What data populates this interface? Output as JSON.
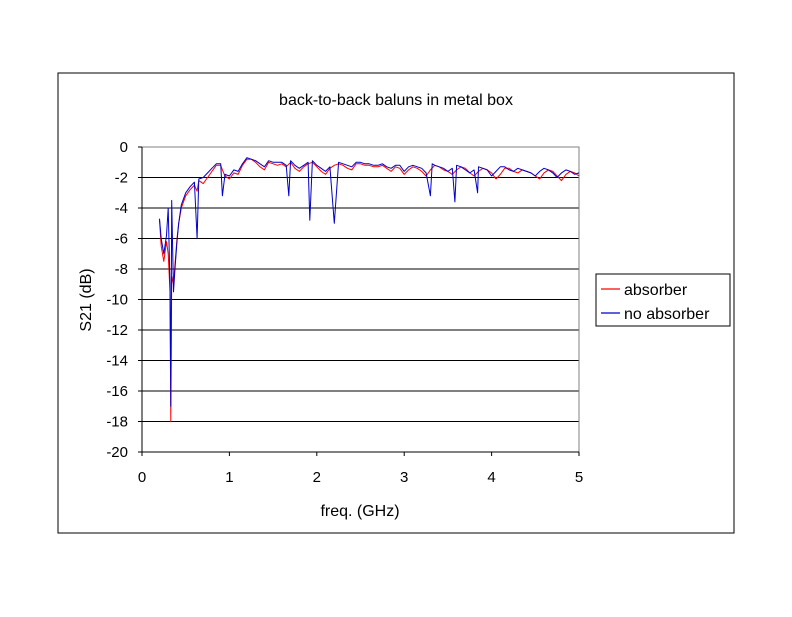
{
  "chart_data": {
    "type": "line",
    "title": "back-to-back baluns in metal box",
    "xlabel": "freq. (GHz)",
    "ylabel": "S21 (dB)",
    "xlim": [
      0,
      5
    ],
    "ylim": [
      -20,
      0
    ],
    "xticks": [
      0,
      1,
      2,
      3,
      4,
      5
    ],
    "yticks": [
      0,
      -2,
      -4,
      -6,
      -8,
      -10,
      -12,
      -14,
      -16,
      -18,
      -20
    ],
    "grid": "horizontal",
    "legend_position": "right",
    "series": [
      {
        "name": "absorber",
        "color": "#ff0000",
        "x": [
          0.2,
          0.22,
          0.25,
          0.28,
          0.3,
          0.32,
          0.33,
          0.34,
          0.36,
          0.38,
          0.4,
          0.42,
          0.45,
          0.5,
          0.55,
          0.6,
          0.63,
          0.65,
          0.7,
          0.75,
          0.8,
          0.85,
          0.9,
          0.92,
          0.95,
          1.0,
          1.05,
          1.1,
          1.15,
          1.2,
          1.25,
          1.3,
          1.35,
          1.4,
          1.45,
          1.5,
          1.55,
          1.6,
          1.65,
          1.7,
          1.75,
          1.8,
          1.85,
          1.9,
          1.95,
          2.0,
          2.05,
          2.1,
          2.15,
          2.2,
          2.25,
          2.3,
          2.35,
          2.4,
          2.45,
          2.5,
          2.55,
          2.6,
          2.65,
          2.7,
          2.75,
          2.8,
          2.85,
          2.9,
          2.95,
          3.0,
          3.05,
          3.1,
          3.15,
          3.2,
          3.25,
          3.3,
          3.35,
          3.4,
          3.45,
          3.5,
          3.55,
          3.6,
          3.65,
          3.7,
          3.75,
          3.8,
          3.85,
          3.9,
          3.95,
          4.0,
          4.05,
          4.1,
          4.15,
          4.2,
          4.25,
          4.3,
          4.35,
          4.4,
          4.45,
          4.5,
          4.55,
          4.6,
          4.65,
          4.7,
          4.75,
          4.8,
          4.85,
          4.9,
          4.95,
          5.0
        ],
        "values": [
          -4.8,
          -6.5,
          -7.5,
          -6.2,
          -7.0,
          -9.5,
          -18.0,
          -8.5,
          -9.0,
          -7.5,
          -6.0,
          -5.0,
          -4.0,
          -3.2,
          -2.8,
          -2.5,
          -2.9,
          -2.2,
          -2.4,
          -2.0,
          -1.6,
          -1.2,
          -1.2,
          -1.5,
          -1.9,
          -2.1,
          -1.7,
          -1.8,
          -1.2,
          -0.8,
          -0.8,
          -1.0,
          -1.3,
          -1.5,
          -1.0,
          -1.1,
          -1.2,
          -1.1,
          -1.3,
          -1.0,
          -1.4,
          -1.6,
          -1.3,
          -1.1,
          -1.0,
          -1.3,
          -1.6,
          -1.8,
          -1.4,
          -1.2,
          -1.1,
          -1.2,
          -1.4,
          -1.5,
          -1.1,
          -1.1,
          -1.2,
          -1.2,
          -1.3,
          -1.3,
          -1.2,
          -1.4,
          -1.6,
          -1.3,
          -1.4,
          -1.8,
          -1.5,
          -1.3,
          -1.4,
          -1.6,
          -1.9,
          -1.5,
          -1.2,
          -1.3,
          -1.5,
          -1.6,
          -1.8,
          -1.5,
          -1.3,
          -1.4,
          -1.7,
          -1.9,
          -1.6,
          -1.4,
          -1.5,
          -1.7,
          -2.1,
          -1.8,
          -1.4,
          -1.4,
          -1.6,
          -1.7,
          -1.5,
          -1.6,
          -1.7,
          -1.9,
          -2.1,
          -1.7,
          -1.5,
          -1.6,
          -1.9,
          -2.2,
          -1.8,
          -1.6,
          -1.7,
          -1.9
        ]
      },
      {
        "name": "no absorber",
        "color": "#0000cc",
        "x": [
          0.2,
          0.22,
          0.25,
          0.28,
          0.3,
          0.32,
          0.33,
          0.34,
          0.36,
          0.38,
          0.4,
          0.42,
          0.45,
          0.5,
          0.55,
          0.6,
          0.63,
          0.65,
          0.7,
          0.75,
          0.8,
          0.85,
          0.9,
          0.92,
          0.95,
          1.0,
          1.05,
          1.1,
          1.15,
          1.2,
          1.25,
          1.3,
          1.35,
          1.4,
          1.45,
          1.5,
          1.55,
          1.6,
          1.65,
          1.68,
          1.7,
          1.75,
          1.8,
          1.85,
          1.9,
          1.92,
          1.95,
          2.0,
          2.05,
          2.1,
          2.15,
          2.2,
          2.25,
          2.3,
          2.35,
          2.4,
          2.45,
          2.5,
          2.55,
          2.6,
          2.65,
          2.7,
          2.75,
          2.8,
          2.85,
          2.9,
          2.95,
          3.0,
          3.05,
          3.1,
          3.15,
          3.2,
          3.25,
          3.3,
          3.32,
          3.35,
          3.4,
          3.45,
          3.5,
          3.55,
          3.58,
          3.6,
          3.65,
          3.7,
          3.75,
          3.8,
          3.84,
          3.85,
          3.9,
          3.95,
          4.0,
          4.05,
          4.1,
          4.15,
          4.2,
          4.25,
          4.3,
          4.35,
          4.4,
          4.45,
          4.5,
          4.55,
          4.6,
          4.65,
          4.7,
          4.75,
          4.8,
          4.85,
          4.9,
          4.95,
          5.0
        ],
        "values": [
          -4.7,
          -6.0,
          -7.0,
          -5.8,
          -4.0,
          -9.0,
          -17.0,
          -3.5,
          -9.5,
          -7.8,
          -6.2,
          -5.0,
          -3.8,
          -3.0,
          -2.6,
          -2.3,
          -6.0,
          -2.1,
          -2.0,
          -1.7,
          -1.4,
          -1.1,
          -1.1,
          -3.2,
          -1.8,
          -1.9,
          -1.5,
          -1.6,
          -1.1,
          -0.7,
          -0.8,
          -0.9,
          -1.1,
          -1.3,
          -0.9,
          -1.0,
          -1.0,
          -1.0,
          -1.2,
          -3.2,
          -0.9,
          -1.2,
          -1.4,
          -1.2,
          -1.0,
          -4.8,
          -0.9,
          -1.2,
          -1.4,
          -1.6,
          -1.3,
          -5.0,
          -1.0,
          -1.1,
          -1.2,
          -1.3,
          -1.0,
          -1.0,
          -1.1,
          -1.1,
          -1.2,
          -1.2,
          -1.1,
          -1.3,
          -1.4,
          -1.2,
          -1.2,
          -1.6,
          -1.3,
          -1.2,
          -1.3,
          -1.4,
          -1.7,
          -3.2,
          -1.1,
          -1.2,
          -1.3,
          -1.4,
          -1.6,
          -1.4,
          -3.6,
          -1.2,
          -1.3,
          -1.5,
          -1.7,
          -1.5,
          -3.0,
          -1.3,
          -1.4,
          -1.5,
          -1.9,
          -1.6,
          -1.3,
          -1.3,
          -1.5,
          -1.6,
          -1.4,
          -1.5,
          -1.6,
          -1.7,
          -1.9,
          -1.6,
          -1.4,
          -1.5,
          -1.7,
          -2.0,
          -1.7,
          -1.5,
          -1.6,
          -1.8,
          -1.7
        ]
      }
    ]
  }
}
